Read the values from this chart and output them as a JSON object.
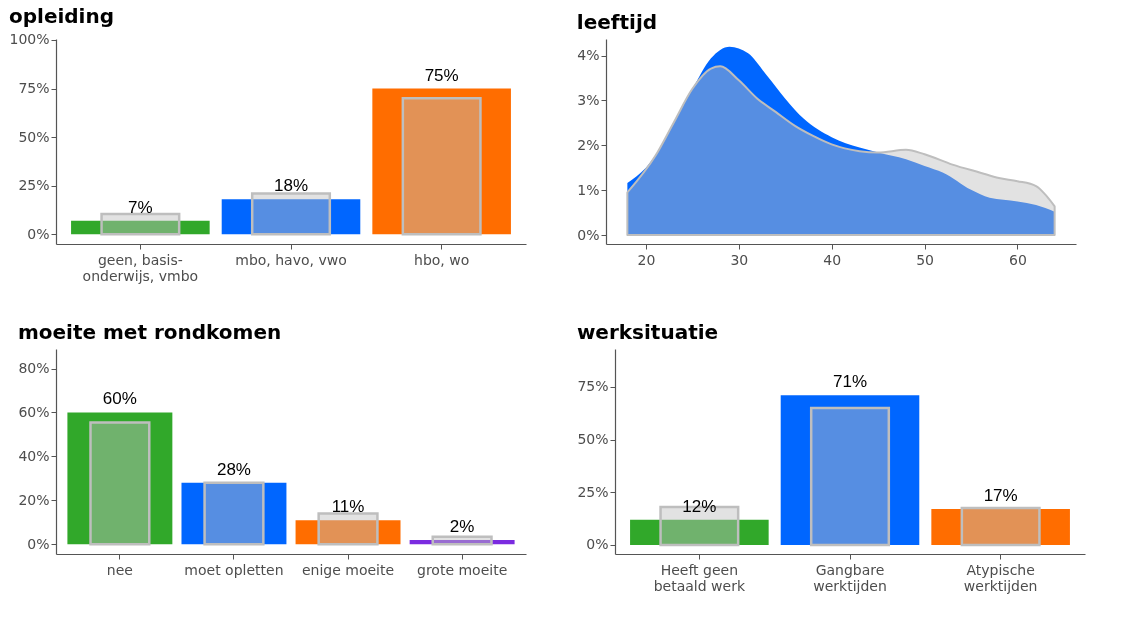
{
  "chart_data": [
    {
      "type": "bar",
      "title": "opleiding",
      "categories": [
        "geen, basis-onderwijs, vmbo",
        "mbo, havo, vwo",
        "hbo, wo"
      ],
      "series": [
        {
          "colors": [
            "#31a82a",
            "#0066ff",
            "#ff6d00"
          ],
          "values": [
            7,
            18,
            75
          ],
          "value_labels": [
            "7%",
            "18%",
            "75%"
          ]
        },
        {
          "color": "#bebebe",
          "values": [
            10.5,
            21,
            70
          ]
        }
      ],
      "ylim": [
        -5,
        100.5
      ],
      "yticks": [
        {
          "value": 0,
          "label": "0%"
        },
        {
          "value": 25,
          "label": "25%"
        },
        {
          "value": 50,
          "label": "50%"
        },
        {
          "value": 75,
          "label": "75%"
        },
        {
          "value": 100,
          "label": "100%"
        }
      ]
    },
    {
      "type": "area",
      "title": "leeftijd",
      "series": [
        {
          "color": "#0066ff",
          "x": [
            18,
            20,
            25,
            27,
            29,
            31,
            33,
            35,
            37,
            40,
            43,
            45,
            48,
            50,
            52,
            55,
            57,
            60,
            62,
            64
          ],
          "values": [
            1.16,
            1.5,
            3.26,
            3.94,
            4.2,
            4.05,
            3.56,
            3.04,
            2.59,
            2.18,
            1.95,
            1.84,
            1.69,
            1.54,
            1.39,
            1.01,
            0.83,
            0.75,
            0.67,
            0.52
          ]
        },
        {
          "color": "#bebebe",
          "x": [
            18,
            21,
            23,
            25,
            27,
            28,
            30,
            32,
            34,
            36,
            38,
            40,
            43,
            45,
            48,
            50,
            53,
            56,
            58,
            60,
            62,
            63,
            64
          ],
          "values": [
            0.95,
            1.76,
            2.51,
            3.26,
            3.71,
            3.76,
            3.45,
            3.04,
            2.74,
            2.44,
            2.21,
            2.02,
            1.87,
            1.84,
            1.9,
            1.8,
            1.57,
            1.39,
            1.27,
            1.2,
            1.09,
            0.9,
            0.64
          ]
        }
      ],
      "xlim": [
        15.7,
        66.3
      ],
      "xticks": [
        20,
        30,
        40,
        50,
        60
      ],
      "ylim": [
        -0.2,
        4.37
      ],
      "yticks": [
        {
          "value": 0,
          "label": "0%"
        },
        {
          "value": 1,
          "label": "1%"
        },
        {
          "value": 2,
          "label": "2%"
        },
        {
          "value": 3,
          "label": "3%"
        },
        {
          "value": 4,
          "label": "4%"
        }
      ]
    },
    {
      "type": "bar",
      "title": "moeite met rondkomen",
      "categories": [
        "nee",
        "moet opletten",
        "enige moeite",
        "grote moeite"
      ],
      "series": [
        {
          "colors": [
            "#31a82a",
            "#0066ff",
            "#ff6d00",
            "#7b2be0"
          ],
          "values": [
            60,
            28,
            11,
            2
          ],
          "value_labels": [
            "60%",
            "28%",
            "11%",
            "2%"
          ]
        },
        {
          "color": "#bebebe",
          "values": [
            55.5,
            28,
            14,
            3.5
          ]
        }
      ],
      "ylim": [
        -4.4,
        88.9
      ],
      "yticks": [
        {
          "value": 0,
          "label": "0%"
        },
        {
          "value": 20,
          "label": "20%"
        },
        {
          "value": 40,
          "label": "40%"
        },
        {
          "value": 60,
          "label": "60%"
        },
        {
          "value": 80,
          "label": "80%"
        }
      ]
    },
    {
      "type": "bar",
      "title": "werksituatie",
      "categories": [
        "Heeft geen betaald werk",
        "Gangbare werktijden",
        "Atypische werktijden"
      ],
      "series": [
        {
          "colors": [
            "#31a82a",
            "#0066ff",
            "#ff6d00"
          ],
          "values": [
            12,
            71,
            17
          ],
          "value_labels": [
            "12%",
            "71%",
            "17%"
          ]
        },
        {
          "color": "#bebebe",
          "values": [
            18,
            65,
            17.5
          ]
        }
      ],
      "ylim": [
        -4.3,
        93
      ],
      "yticks": [
        {
          "value": 0,
          "label": "0%"
        },
        {
          "value": 25,
          "label": "25%"
        },
        {
          "value": 50,
          "label": "50%"
        },
        {
          "value": 75,
          "label": "75%"
        }
      ]
    }
  ]
}
